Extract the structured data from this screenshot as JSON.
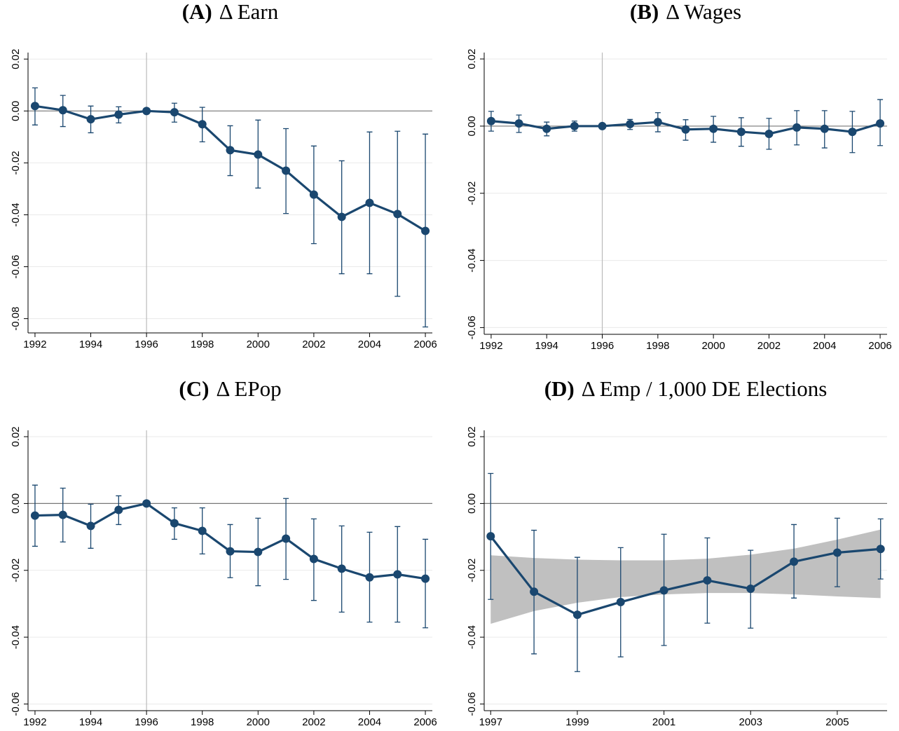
{
  "chart_data": [
    {
      "type": "line",
      "panel": "(A)",
      "title": "Δ Earn",
      "color": "#1a476f",
      "x": [
        1992,
        1993,
        1994,
        1995,
        1996,
        1997,
        1998,
        1999,
        2000,
        2001,
        2002,
        2003,
        2004,
        2005,
        2006
      ],
      "values": [
        0.0019,
        0.0003,
        -0.0032,
        -0.0014,
        0,
        -0.0005,
        -0.0051,
        -0.0151,
        -0.0168,
        -0.023,
        -0.0322,
        -0.0408,
        -0.0354,
        -0.0397,
        -0.0462
      ],
      "ci_lower": [
        -0.0054,
        -0.006,
        -0.0084,
        -0.0046,
        0,
        -0.0043,
        -0.0119,
        -0.0249,
        -0.0297,
        -0.0395,
        -0.0511,
        -0.0627,
        -0.0627,
        -0.0714,
        -0.0832
      ],
      "ci_upper": [
        0.0089,
        0.006,
        0.0019,
        0.0016,
        0,
        0.003,
        0.0014,
        -0.0057,
        -0.0035,
        -0.0068,
        -0.0135,
        -0.0192,
        -0.0081,
        -0.0078,
        -0.0089
      ],
      "xlim": [
        1991.75,
        2006.25
      ],
      "xticks": [
        1992,
        1994,
        1996,
        1998,
        2000,
        2002,
        2004,
        2006
      ],
      "ylim": [
        -0.0855,
        0.0225
      ],
      "yticks": [
        0.02,
        {
          "value": 0,
          "label": "0.00"
        },
        -0.02,
        -0.04,
        -0.06,
        -0.08
      ],
      "grid": true,
      "vline": 1996,
      "hline": 0
    },
    {
      "type": "line",
      "panel": "(B)",
      "title": "Δ Wages",
      "color": "#1a476f",
      "x": [
        1992,
        1993,
        1994,
        1995,
        1996,
        1997,
        1998,
        1999,
        2000,
        2001,
        2002,
        2003,
        2004,
        2005,
        2006
      ],
      "values": [
        0.0015,
        0.0008,
        -0.0008,
        0,
        0,
        0.0006,
        0.0012,
        -0.001,
        -0.0008,
        -0.0017,
        -0.0023,
        -0.0004,
        -0.0008,
        -0.0017,
        0.0008
      ],
      "ci_lower": [
        -0.0015,
        -0.0019,
        -0.0029,
        -0.0015,
        0,
        -0.001,
        -0.0017,
        -0.0042,
        -0.0048,
        -0.006,
        -0.0069,
        -0.0056,
        -0.0065,
        -0.0079,
        -0.0058
      ],
      "ci_upper": [
        0.0044,
        0.0033,
        0.0012,
        0.0015,
        0,
        0.002,
        0.004,
        0.0019,
        0.0029,
        0.0025,
        0.0023,
        0.0046,
        0.0046,
        0.0044,
        0.0079
      ],
      "xlim": [
        1991.75,
        2006.25
      ],
      "xticks": [
        1992,
        1994,
        1996,
        1998,
        2000,
        2002,
        2004,
        2006
      ],
      "ylim": [
        -0.062,
        0.0219
      ],
      "yticks": [
        0.02,
        {
          "value": 0,
          "label": "0.00"
        },
        -0.02,
        -0.04,
        -0.06
      ],
      "grid": true,
      "vline": 1996,
      "hline": 0
    },
    {
      "type": "line",
      "panel": "(C)",
      "title": "Δ EPop",
      "color": "#1a476f",
      "x": [
        1992,
        1993,
        1994,
        1995,
        1996,
        1997,
        1998,
        1999,
        2000,
        2001,
        2002,
        2003,
        2004,
        2005,
        2006
      ],
      "values": [
        -0.0036,
        -0.0034,
        -0.0067,
        -0.0019,
        0,
        -0.0059,
        -0.0082,
        -0.0143,
        -0.0145,
        -0.0105,
        -0.0166,
        -0.0195,
        -0.0221,
        -0.0212,
        -0.0225
      ],
      "ci_lower": [
        -0.0128,
        -0.0115,
        -0.0134,
        -0.0063,
        0,
        -0.0107,
        -0.0151,
        -0.0222,
        -0.0246,
        -0.0227,
        -0.029,
        -0.0325,
        -0.0355,
        -0.0355,
        -0.0372
      ],
      "ci_upper": [
        0.0055,
        0.0046,
        -0.0002,
        0.0023,
        0,
        -0.0013,
        -0.0013,
        -0.0063,
        -0.0044,
        0.0015,
        -0.0046,
        -0.0067,
        -0.0086,
        -0.0069,
        -0.0107
      ],
      "xlim": [
        1991.75,
        2006.25
      ],
      "xticks": [
        1992,
        1994,
        1996,
        1998,
        2000,
        2002,
        2004,
        2006
      ],
      "ylim": [
        -0.062,
        0.0219
      ],
      "yticks": [
        0.02,
        {
          "value": 0,
          "label": "0.00"
        },
        -0.02,
        -0.04,
        -0.06
      ],
      "grid": true,
      "vline": 1996,
      "hline": 0
    },
    {
      "type": "line",
      "panel": "(D)",
      "title": "Δ Emp / 1,000 DE Elections",
      "color": "#1a476f",
      "band_color": "#c0c0c0",
      "x": [
        1997,
        1998,
        1999,
        2000,
        2001,
        2002,
        2003,
        2004,
        2005,
        2006
      ],
      "values": [
        -0.0098,
        -0.0264,
        -0.0333,
        -0.0295,
        -0.026,
        -0.023,
        -0.0255,
        -0.0174,
        -0.0147,
        -0.0136
      ],
      "ci_lower": [
        -0.0287,
        -0.045,
        -0.0503,
        -0.0459,
        -0.0425,
        -0.0358,
        -0.0373,
        -0.0283,
        -0.0249,
        -0.0226
      ],
      "ci_upper": [
        0.009,
        -0.008,
        -0.0161,
        -0.0132,
        -0.0092,
        -0.0103,
        -0.014,
        -0.0063,
        -0.0044,
        -0.0046
      ],
      "band_lower": [
        -0.036,
        -0.0322,
        -0.0297,
        -0.028,
        -0.0272,
        -0.0268,
        -0.0268,
        -0.0272,
        -0.0278,
        -0.0283
      ],
      "band_upper": [
        -0.0155,
        -0.0163,
        -0.0168,
        -0.017,
        -0.017,
        -0.0165,
        -0.0153,
        -0.0135,
        -0.0108,
        -0.0078
      ],
      "xlim": [
        1996.85,
        2006.15
      ],
      "xticks": [
        1997,
        1999,
        2001,
        2003,
        2005
      ],
      "ylim": [
        -0.062,
        0.0219
      ],
      "yticks": [
        0.02,
        {
          "value": 0,
          "label": "0.00"
        },
        -0.02,
        -0.04,
        -0.06
      ],
      "grid": true,
      "hline": 0
    }
  ]
}
